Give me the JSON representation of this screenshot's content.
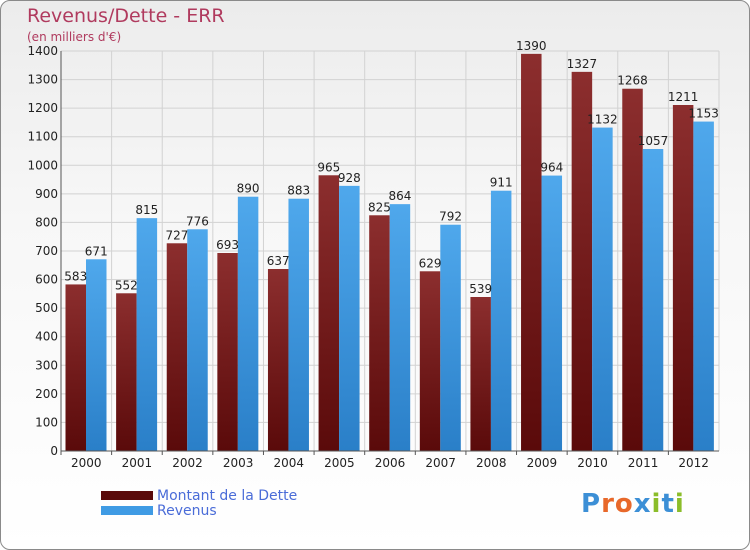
{
  "chart_data": {
    "type": "bar",
    "title": "Revenus/Dette - ERR",
    "subtitle": "(en milliers d'€)",
    "categories": [
      "2000",
      "2001",
      "2002",
      "2003",
      "2004",
      "2005",
      "2006",
      "2007",
      "2008",
      "2009",
      "2010",
      "2011",
      "2012"
    ],
    "series": [
      {
        "name": "Montant de la Dette",
        "color": "#7a1c1c",
        "values": [
          583,
          552,
          727,
          693,
          637,
          965,
          825,
          629,
          539,
          1390,
          1327,
          1268,
          1211
        ]
      },
      {
        "name": "Revenus",
        "color": "#3f9be4",
        "values": [
          671,
          815,
          776,
          890,
          883,
          928,
          864,
          792,
          911,
          964,
          1132,
          1057,
          1153
        ]
      }
    ],
    "ylim": [
      0,
      1400
    ],
    "yticks": [
      0,
      100,
      200,
      300,
      400,
      500,
      600,
      700,
      800,
      900,
      1000,
      1100,
      1200,
      1300,
      1400
    ],
    "grid": true,
    "legend_position": "bottom-left"
  },
  "logo": {
    "text": "Proxiti",
    "letter_colors": [
      "#3c8fd6",
      "#e8682a",
      "#e8682a",
      "#3c8fd6",
      "#8bbd2a",
      "#3c8fd6",
      "#8bbd2a"
    ]
  }
}
